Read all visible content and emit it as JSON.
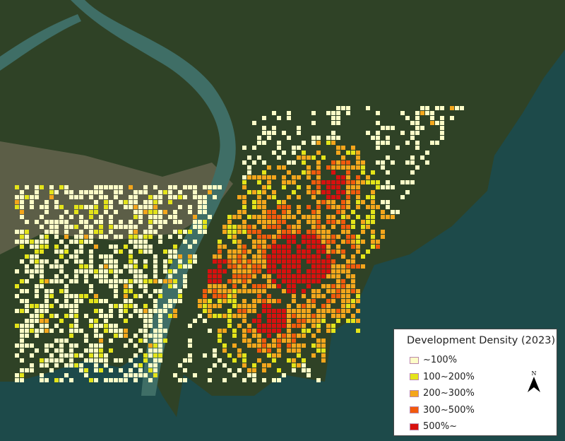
{
  "legend": {
    "title": "Development Density (2023)",
    "items": [
      {
        "label": "~100%",
        "color": "#fdfdc8"
      },
      {
        "label": "100~200%",
        "color": "#e4e41a"
      },
      {
        "label": "200~300%",
        "color": "#f4a61c"
      },
      {
        "label": "300~500%",
        "color": "#f25a0c"
      },
      {
        "label": "500%~",
        "color": "#d8100e"
      }
    ],
    "north_arrow": "N"
  },
  "colors": {
    "land": "#2b3d22",
    "sea": "#1d4a4a",
    "river": "#3f6e66",
    "urban_grey": "#6e6a60"
  }
}
